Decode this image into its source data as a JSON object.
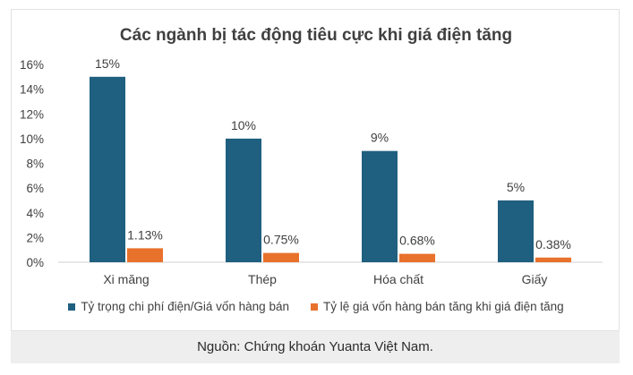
{
  "chart_data": {
    "type": "bar",
    "title": "Các ngành bị tác động tiêu cực khi giá điện tăng",
    "categories": [
      "Xi măng",
      "Thép",
      "Hóa chất",
      "Giấy"
    ],
    "series": [
      {
        "name": "Tỷ trọng chi phí điện/Giá vốn hàng bán",
        "values": [
          15,
          10,
          9,
          5
        ],
        "labels": [
          "15%",
          "10%",
          "9%",
          "5%"
        ],
        "color": "#1f5f7f"
      },
      {
        "name": "Tỷ lệ giá vốn hàng bán tăng khi giá điện tăng",
        "values": [
          1.13,
          0.75,
          0.68,
          0.38
        ],
        "labels": [
          "1.13%",
          "0.75%",
          "0.68%",
          "0.38%"
        ],
        "color": "#e8712b"
      }
    ],
    "yticks": [
      "0%",
      "2%",
      "4%",
      "6%",
      "8%",
      "10%",
      "12%",
      "14%",
      "16%"
    ],
    "ylim": [
      0,
      16
    ],
    "grid": false,
    "legend_position": "bottom"
  },
  "source": "Nguồn: Chứng khoán Yuanta Việt Nam."
}
